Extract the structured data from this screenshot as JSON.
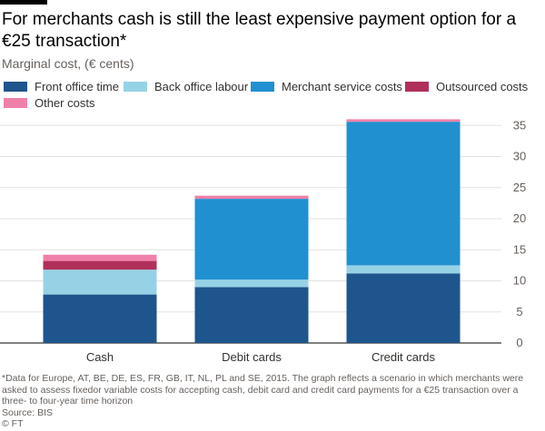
{
  "title": "For merchants cash is still the least expensive payment option for a €25 transaction*",
  "subtitle": "Marginal cost, (€ cents)",
  "footnote": "*Data for Europe, AT, BE, DE, ES, FR, GB, IT, NL, PL and SE, 2015. The graph reflects a scenario in which merchants were asked to assess fixedor variable costs for accepting cash, debit card and credit card payments for a €25 transaction over a three- to four-year time horizon",
  "source": "Source: BIS",
  "credit": "© FT",
  "chart_data": {
    "type": "bar",
    "stacked": true,
    "categories": [
      "Cash",
      "Debit cards",
      "Credit cards"
    ],
    "series": [
      {
        "name": "Front office time",
        "color": "#1e558c",
        "values": [
          7.8,
          9.0,
          11.2
        ]
      },
      {
        "name": "Back office labour",
        "color": "#96d2e6",
        "values": [
          4.0,
          1.2,
          1.3
        ]
      },
      {
        "name": "Merchant service costs",
        "color": "#2090d0",
        "values": [
          0.0,
          13.0,
          23.1
        ]
      },
      {
        "name": "Outsourced costs",
        "color": "#b0305a",
        "values": [
          1.4,
          0.0,
          0.0
        ]
      },
      {
        "name": "Other costs",
        "color": "#f080aa",
        "values": [
          1.0,
          0.5,
          0.4
        ]
      }
    ],
    "yticks": [
      0,
      5,
      10,
      15,
      20,
      25,
      30,
      35
    ],
    "ylim": [
      0,
      36.5
    ],
    "grid": true,
    "yaxis_position": "right",
    "legend_position": "top"
  }
}
